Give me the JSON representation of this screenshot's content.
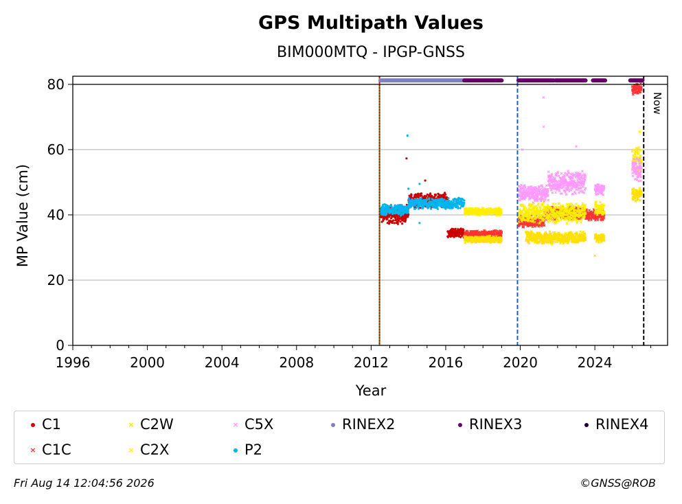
{
  "chart_data": {
    "type": "scatter",
    "title": "GPS Multipath Values",
    "subtitle": "BIM000MTQ - IPGP-GNSS",
    "xlabel": "Year",
    "ylabel": "MP Value (cm)",
    "xlim": [
      1996.0,
      2027.9
    ],
    "ylim": [
      0,
      82.5
    ],
    "x_ticks": [
      1996,
      2000,
      2004,
      2008,
      2012,
      2016,
      2020,
      2024
    ],
    "x_tick_labels": [
      "1996",
      "2000",
      "2004",
      "2008",
      "2012",
      "2016",
      "2020",
      "2024"
    ],
    "y_ticks": [
      0,
      20,
      40,
      60,
      80
    ],
    "y_tick_labels": [
      "0",
      "20",
      "40",
      "60",
      "80"
    ],
    "grid": "horizontal",
    "legend_position": "bottom",
    "vertical_lines": [
      {
        "x": 2012.45,
        "color": "#2e8b00",
        "style": "solid"
      },
      {
        "x": 2012.45,
        "color": "#cc0000",
        "style": "dotted"
      },
      {
        "x": 2019.85,
        "color": "#1f5fbf",
        "style": "dashed"
      },
      {
        "x": 2026.62,
        "color": "#000000",
        "style": "dashed",
        "label": "Now"
      }
    ],
    "series": [
      {
        "name": "C1",
        "color": "#cc0000",
        "marker": "dot",
        "segments": [
          {
            "x_start": 2012.5,
            "x_end": 2014.0,
            "y_mean": 40,
            "y_spread": 3.2
          },
          {
            "x_start": 2014.0,
            "x_end": 2016.1,
            "y_mean": 44.5,
            "y_spread": 2.5
          },
          {
            "x_start": 2016.1,
            "x_end": 2017.0,
            "y_mean": 34.5,
            "y_spread": 1.5
          }
        ],
        "outliers": [
          [
            2013.9,
            57.3
          ],
          [
            2014.9,
            50.5
          ]
        ]
      },
      {
        "name": "C1C",
        "color": "#ff3333",
        "marker": "x",
        "segments": [
          {
            "x_start": 2017.0,
            "x_end": 2019.0,
            "y_mean": 34.0,
            "y_spread": 1.3
          },
          {
            "x_start": 2019.9,
            "x_end": 2021.3,
            "y_mean": 38.0,
            "y_spread": 2.0
          },
          {
            "x_start": 2021.3,
            "x_end": 2023.5,
            "y_mean": 40.5,
            "y_spread": 2.2
          },
          {
            "x_start": 2023.5,
            "x_end": 2024.5,
            "y_mean": 40.0,
            "y_spread": 2.0
          },
          {
            "x_start": 2026.0,
            "x_end": 2026.5,
            "y_mean": 78.5,
            "y_spread": 2.0
          }
        ],
        "outliers": []
      },
      {
        "name": "C2W",
        "color": "#ffe000",
        "marker": "x",
        "segments": [
          {
            "x_start": 2017.0,
            "x_end": 2019.0,
            "y_mean": 32.5,
            "y_spread": 1.2
          },
          {
            "x_start": 2020.3,
            "x_end": 2023.5,
            "y_mean": 33.0,
            "y_spread": 2.0
          },
          {
            "x_start": 2024.0,
            "x_end": 2024.5,
            "y_mean": 33.0,
            "y_spread": 1.5
          },
          {
            "x_start": 2026.0,
            "x_end": 2026.5,
            "y_mean": 46.0,
            "y_spread": 2.5
          }
        ],
        "outliers": [
          [
            2024.0,
            27.5
          ]
        ]
      },
      {
        "name": "C2X",
        "color": "#ffee00",
        "marker": "x",
        "segments": [
          {
            "x_start": 2017.0,
            "x_end": 2019.0,
            "y_mean": 41.0,
            "y_spread": 1.2
          },
          {
            "x_start": 2019.9,
            "x_end": 2023.5,
            "y_mean": 40.5,
            "y_spread": 3.5
          },
          {
            "x_start": 2024.0,
            "x_end": 2024.5,
            "y_mean": 42.0,
            "y_spread": 2.5
          },
          {
            "x_start": 2026.0,
            "x_end": 2026.5,
            "y_mean": 57.0,
            "y_spread": 5.0
          }
        ],
        "outliers": [
          [
            2026.4,
            65.5
          ]
        ]
      },
      {
        "name": "C5X",
        "color": "#ff99ff",
        "marker": "x",
        "segments": [
          {
            "x_start": 2019.9,
            "x_end": 2021.5,
            "y_mean": 46.5,
            "y_spread": 3.0
          },
          {
            "x_start": 2021.5,
            "x_end": 2023.5,
            "y_mean": 50.0,
            "y_spread": 4.0
          },
          {
            "x_start": 2024.0,
            "x_end": 2024.5,
            "y_mean": 48.0,
            "y_spread": 2.0
          },
          {
            "x_start": 2026.0,
            "x_end": 2026.5,
            "y_mean": 54.0,
            "y_spread": 4.0
          }
        ],
        "outliers": [
          [
            2021.25,
            76.0
          ],
          [
            2021.25,
            67.0
          ],
          [
            2020.1,
            60.0
          ],
          [
            2023.0,
            61.0
          ]
        ]
      },
      {
        "name": "P2",
        "color": "#00b4f0",
        "marker": "dot",
        "segments": [
          {
            "x_start": 2012.5,
            "x_end": 2014.0,
            "y_mean": 41.5,
            "y_spread": 1.8
          },
          {
            "x_start": 2014.0,
            "x_end": 2017.0,
            "y_mean": 43.5,
            "y_spread": 1.8
          }
        ],
        "outliers": [
          [
            2013.95,
            64.3
          ],
          [
            2014.0,
            48.0
          ],
          [
            2014.6,
            49.5
          ],
          [
            2014.6,
            37.5
          ]
        ]
      }
    ],
    "availability_bars": [
      {
        "name": "RINEX2",
        "color": "#8080c0",
        "y": 81.2,
        "ranges": [
          [
            2012.5,
            2017.0
          ]
        ]
      },
      {
        "name": "RINEX3",
        "color": "#660066",
        "y": 81.2,
        "ranges": [
          [
            2017.0,
            2019.0
          ],
          [
            2019.9,
            2021.8
          ],
          [
            2021.9,
            2023.5
          ],
          [
            2023.9,
            2024.55
          ],
          [
            2025.9,
            2026.55
          ]
        ]
      },
      {
        "name": "RINEX4",
        "color": "#220033",
        "y": 81.2,
        "ranges": []
      }
    ],
    "now_label": "Now",
    "legend": [
      {
        "name": "C1",
        "color": "#cc0000",
        "marker": "dot"
      },
      {
        "name": "C2W",
        "color": "#ffe000",
        "marker": "x"
      },
      {
        "name": "C5X",
        "color": "#ff99ff",
        "marker": "x"
      },
      {
        "name": "RINEX2",
        "color": "#8080c0",
        "marker": "dot"
      },
      {
        "name": "RINEX3",
        "color": "#660066",
        "marker": "dot"
      },
      {
        "name": "RINEX4",
        "color": "#220033",
        "marker": "dot"
      },
      {
        "name": "C1C",
        "color": "#ff3333",
        "marker": "x"
      },
      {
        "name": "C2X",
        "color": "#ffee00",
        "marker": "x"
      },
      {
        "name": "P2",
        "color": "#00b4f0",
        "marker": "dot"
      }
    ]
  },
  "footer": {
    "timestamp": "Fri Aug 14 12:04:56 2026",
    "credit": "©GNSS@ROB"
  }
}
